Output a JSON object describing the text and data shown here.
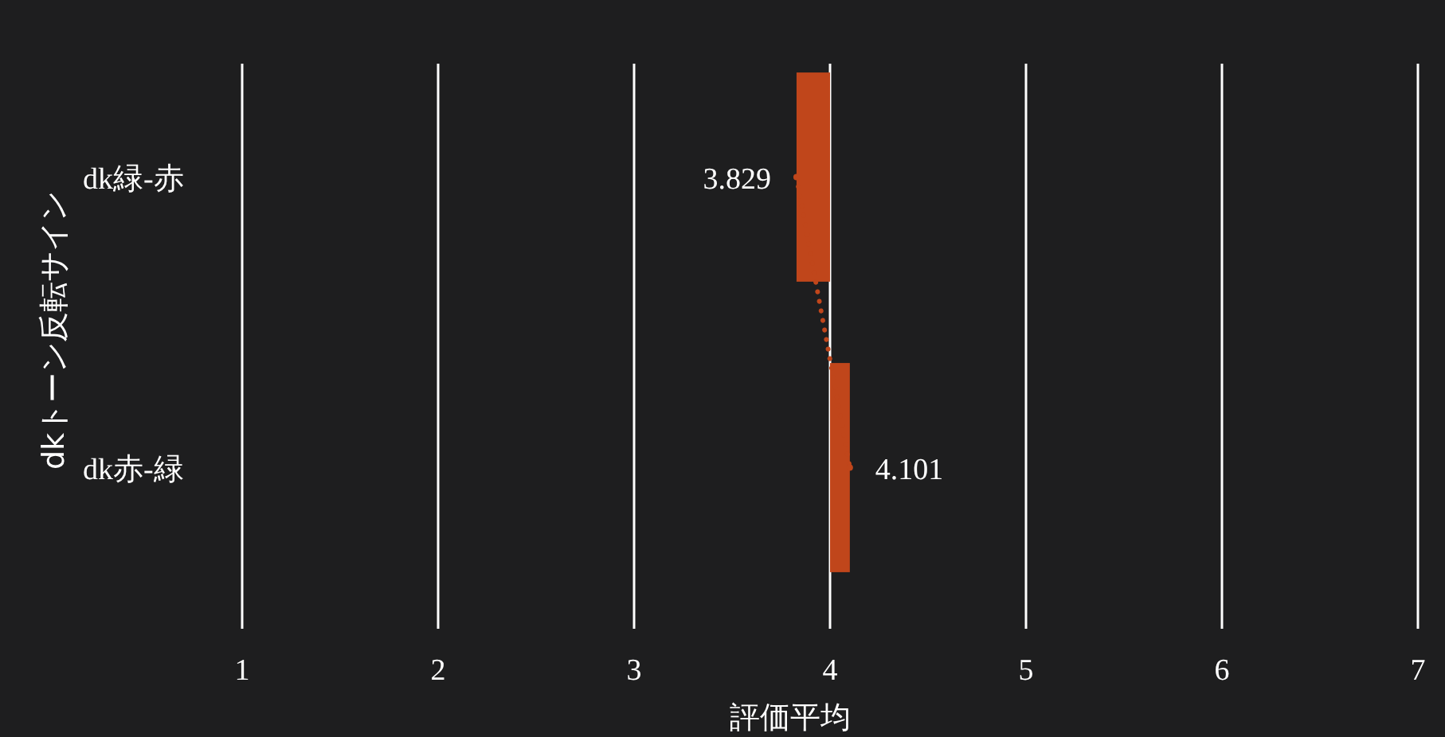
{
  "chart_data": {
    "type": "bar",
    "orientation": "horizontal",
    "ylabel": "dkトーン反転サイン",
    "xlabel": "評価平均",
    "categories": [
      "dk緑-赤",
      "dk赤-緑"
    ],
    "xlim": [
      1,
      7
    ],
    "xticks": [
      1,
      2,
      3,
      4,
      5,
      6,
      7
    ],
    "grid": "x",
    "series": [
      {
        "color": "#c0461b",
        "base": [
          4,
          4
        ],
        "values": [
          -0.171,
          0.101
        ],
        "value_labels": [
          "3.829",
          "4.101"
        ]
      },
      {
        "type": "line",
        "color": "#c0461b",
        "values": [
          3.829,
          4.101
        ],
        "line_style": "dotted",
        "marker": "circle"
      }
    ]
  }
}
